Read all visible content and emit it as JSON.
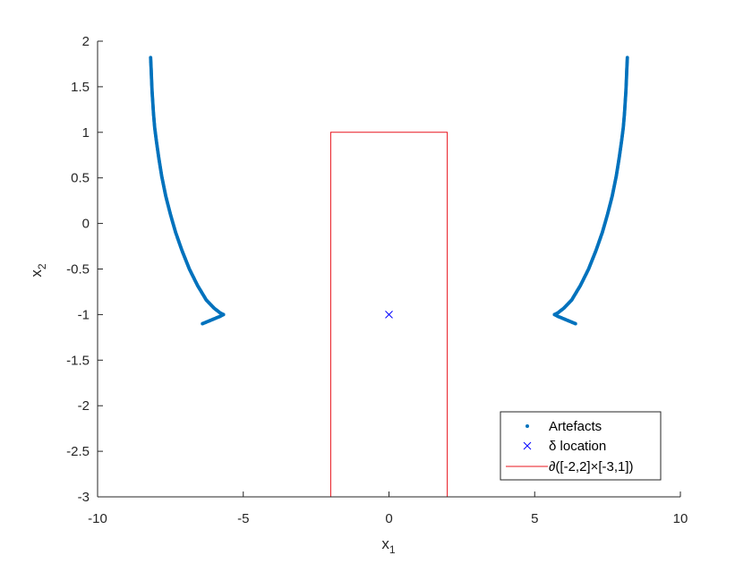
{
  "chart_data": {
    "type": "scatter",
    "xlabel": "x",
    "xlabel_sub": "1",
    "ylabel": "x",
    "ylabel_sub": "2",
    "xlim": [
      -10,
      10
    ],
    "ylim": [
      -3,
      2
    ],
    "xticks": [
      -10,
      -5,
      0,
      5,
      10
    ],
    "xtick_labels": [
      "-10",
      "-5",
      "0",
      "5",
      "10"
    ],
    "yticks": [
      -3,
      -2.5,
      -2,
      -1.5,
      -1,
      -0.5,
      0,
      0.5,
      1,
      1.5,
      2
    ],
    "ytick_labels": [
      "-3",
      "-2.5",
      "-2",
      "-1.5",
      "-1",
      "-0.5",
      "0",
      "0.5",
      "1",
      "1.5",
      "2"
    ],
    "grid": false,
    "legend_position": "bottom-right",
    "series": [
      {
        "name": "Artefacts",
        "marker": "dot",
        "color": "#0072BD",
        "branches": [
          {
            "x": [
              -8.18,
              -8.17,
              -8.16,
              -8.15,
              -8.14,
              -8.13,
              -8.11,
              -8.08,
              -8.04,
              -7.98,
              -7.9,
              -7.8,
              -7.66,
              -7.5,
              -7.32,
              -7.1,
              -6.85,
              -6.57,
              -6.27,
              -6.0,
              -5.8,
              -5.68
            ],
            "y": [
              1.82,
              1.75,
              1.68,
              1.6,
              1.52,
              1.45,
              1.35,
              1.2,
              1.05,
              0.9,
              0.72,
              0.52,
              0.3,
              0.1,
              -0.1,
              -0.3,
              -0.5,
              -0.68,
              -0.84,
              -0.93,
              -0.98,
              -1.0
            ]
          },
          {
            "x": [
              -5.68,
              -5.8,
              -5.95,
              -6.1,
              -6.25,
              -6.4
            ],
            "y": [
              -1.0,
              -1.02,
              -1.04,
              -1.06,
              -1.08,
              -1.1
            ]
          },
          {
            "x": [
              8.18,
              8.17,
              8.16,
              8.15,
              8.14,
              8.13,
              8.11,
              8.08,
              8.04,
              7.98,
              7.9,
              7.8,
              7.66,
              7.5,
              7.32,
              7.1,
              6.85,
              6.57,
              6.27,
              6.0,
              5.8,
              5.68
            ],
            "y": [
              1.82,
              1.75,
              1.68,
              1.6,
              1.52,
              1.45,
              1.35,
              1.2,
              1.05,
              0.9,
              0.72,
              0.52,
              0.3,
              0.1,
              -0.1,
              -0.3,
              -0.5,
              -0.68,
              -0.84,
              -0.93,
              -0.98,
              -1.0
            ]
          },
          {
            "x": [
              5.68,
              5.8,
              5.95,
              6.1,
              6.25,
              6.4
            ],
            "y": [
              -1.0,
              -1.02,
              -1.04,
              -1.06,
              -1.08,
              -1.1
            ]
          }
        ]
      },
      {
        "name": "δ location",
        "marker": "x",
        "color": "#0000FF",
        "x": [
          0
        ],
        "y": [
          -1
        ]
      },
      {
        "name": "∂([-2,2]×[-3,1])",
        "marker": "line",
        "color": "#E8141E",
        "x": [
          -2,
          2,
          2,
          -2,
          -2
        ],
        "y": [
          -3,
          -3,
          1,
          1,
          -3
        ]
      }
    ]
  }
}
